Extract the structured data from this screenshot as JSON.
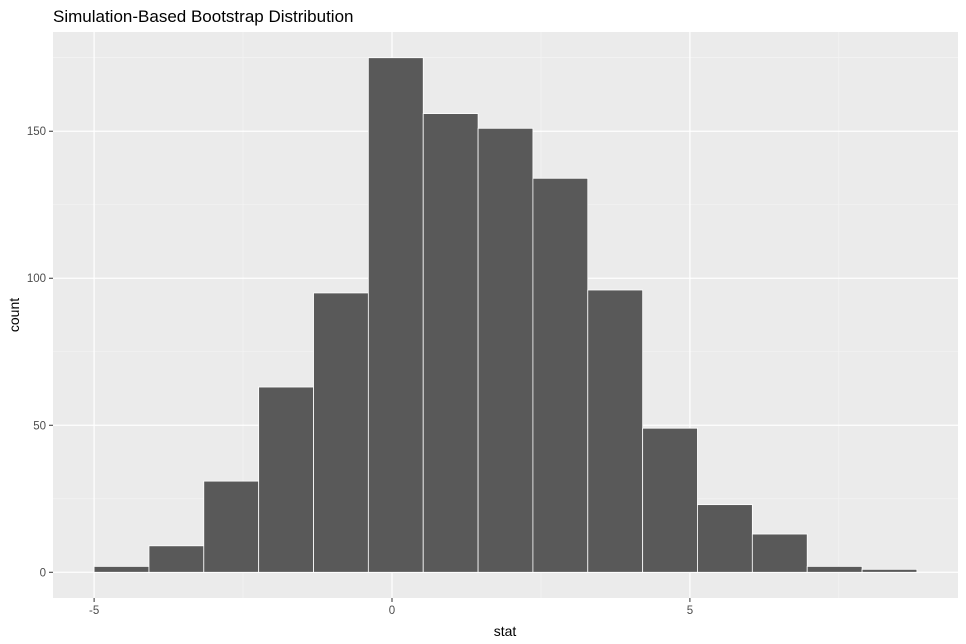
{
  "chart_data": {
    "type": "bar",
    "title": "Simulation-Based Bootstrap Distribution",
    "xlabel": "stat",
    "ylabel": "count",
    "bin_width": 0.9207,
    "bins": [
      {
        "x_start": -5.0,
        "x_end": -4.079,
        "count": 2
      },
      {
        "x_start": -4.079,
        "x_end": -3.159,
        "count": 9
      },
      {
        "x_start": -3.159,
        "x_end": -2.238,
        "count": 31
      },
      {
        "x_start": -2.238,
        "x_end": -1.317,
        "count": 63
      },
      {
        "x_start": -1.317,
        "x_end": -0.397,
        "count": 95
      },
      {
        "x_start": -0.397,
        "x_end": 0.524,
        "count": 175
      },
      {
        "x_start": 0.524,
        "x_end": 1.445,
        "count": 156
      },
      {
        "x_start": 1.445,
        "x_end": 2.365,
        "count": 151
      },
      {
        "x_start": 2.365,
        "x_end": 3.286,
        "count": 134
      },
      {
        "x_start": 3.286,
        "x_end": 4.207,
        "count": 96
      },
      {
        "x_start": 4.207,
        "x_end": 5.127,
        "count": 49
      },
      {
        "x_start": 5.127,
        "x_end": 6.048,
        "count": 23
      },
      {
        "x_start": 6.048,
        "x_end": 6.969,
        "count": 13
      },
      {
        "x_start": 6.969,
        "x_end": 7.89,
        "count": 2
      },
      {
        "x_start": 7.89,
        "x_end": 8.81,
        "count": 1
      }
    ],
    "xlim": [
      -5.69,
      9.5
    ],
    "ylim": [
      -8.75,
      183.75
    ],
    "x_ticks": [
      {
        "value": -5,
        "label": "-5"
      },
      {
        "value": 0,
        "label": "0"
      },
      {
        "value": 5,
        "label": "5"
      }
    ],
    "x_minor_ticks": [
      -2.5,
      2.5,
      7.5
    ],
    "y_ticks": [
      {
        "value": 0,
        "label": "0"
      },
      {
        "value": 50,
        "label": "50"
      },
      {
        "value": 100,
        "label": "100"
      },
      {
        "value": 150,
        "label": "150"
      }
    ],
    "y_minor_ticks": [
      25,
      75,
      125,
      175
    ],
    "grid": true,
    "colors": {
      "panel_background": "#ebebeb",
      "grid_major": "#ffffff",
      "grid_minor": "#f5f5f5",
      "bar_fill": "#595959",
      "bar_outline": "#ffffff",
      "tick_color": "#333333"
    }
  }
}
